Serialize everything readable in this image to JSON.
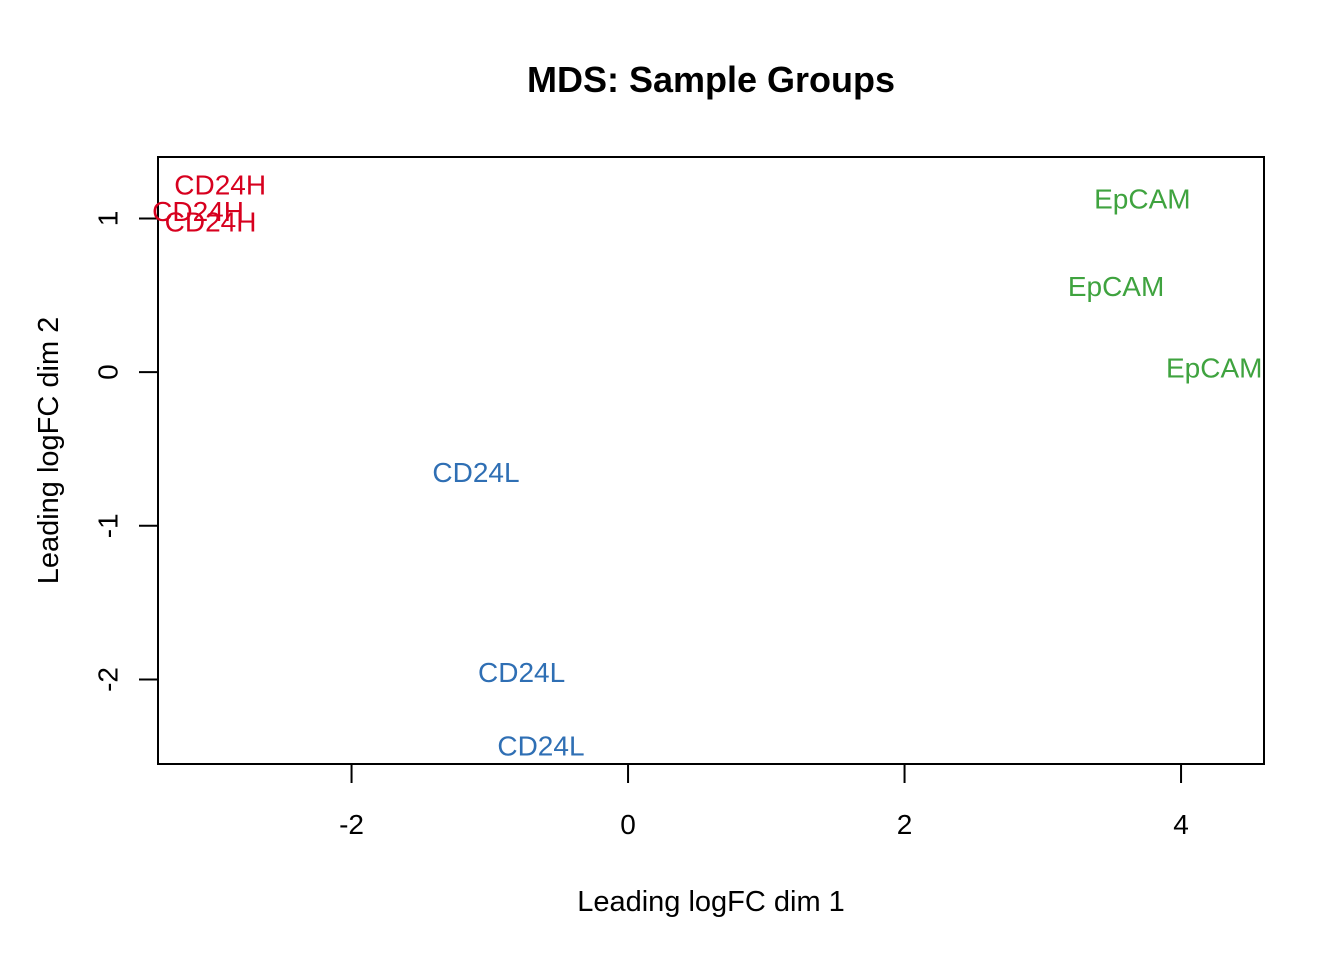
{
  "chart_data": {
    "type": "scatter",
    "title": "MDS: Sample Groups",
    "xlabel": "Leading logFC dim 1",
    "ylabel": "Leading logFC dim 2",
    "xlim": [
      -3.4,
      4.6
    ],
    "ylim": [
      -2.55,
      1.4
    ],
    "xticks": [
      -2,
      0,
      2,
      4
    ],
    "yticks": [
      -2,
      -1,
      0,
      1
    ],
    "grid": false,
    "points": [
      {
        "label": "CD24H",
        "x": -2.95,
        "y": 1.22,
        "color": "#d7001e"
      },
      {
        "label": "CD24H",
        "x": -3.11,
        "y": 1.05,
        "color": "#d7001e"
      },
      {
        "label": "CD24H",
        "x": -3.02,
        "y": 0.98,
        "color": "#d7001e"
      },
      {
        "label": "CD24L",
        "x": -1.1,
        "y": -0.65,
        "color": "#2f6fb4"
      },
      {
        "label": "CD24L",
        "x": -0.77,
        "y": -1.95,
        "color": "#2f6fb4"
      },
      {
        "label": "CD24L",
        "x": -0.63,
        "y": -2.43,
        "color": "#2f6fb4"
      },
      {
        "label": "EpCAM",
        "x": 3.72,
        "y": 1.13,
        "color": "#3fa33f"
      },
      {
        "label": "EpCAM",
        "x": 3.53,
        "y": 0.56,
        "color": "#3fa33f"
      },
      {
        "label": "EpCAM",
        "x": 4.24,
        "y": 0.03,
        "color": "#3fa33f"
      }
    ]
  }
}
